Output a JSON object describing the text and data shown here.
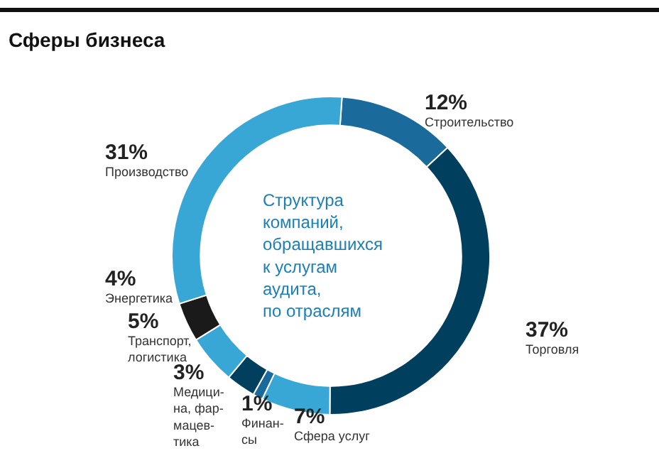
{
  "chart_data": {
    "type": "donut",
    "title": "Сферы бизнеса",
    "annotations": [
      "Структура\nкомпаний,\nобращавшихся\nк услугам\nаудита,\nпо отраслям"
    ],
    "categories": [
      "Строительство",
      "Торговля",
      "Сфера услуг",
      "Финан-\nсы",
      "Медици-\nна, фар-\nмацев-\nтика",
      "Транспорт,\nлогистика",
      "Энергетика",
      "Производство"
    ],
    "values": [
      12,
      37,
      7,
      1,
      3,
      5,
      4,
      31
    ],
    "value_labels": [
      "12%",
      "37%",
      "7%",
      "1%",
      "3%",
      "5%",
      "4%",
      "31%"
    ],
    "colors": [
      "#1b6a9c",
      "#003f5e",
      "#39a7d6",
      "#1b6a9c",
      "#003f5e",
      "#39a7d6",
      "#1a1a1a",
      "#39a7d6"
    ],
    "legend": false
  }
}
